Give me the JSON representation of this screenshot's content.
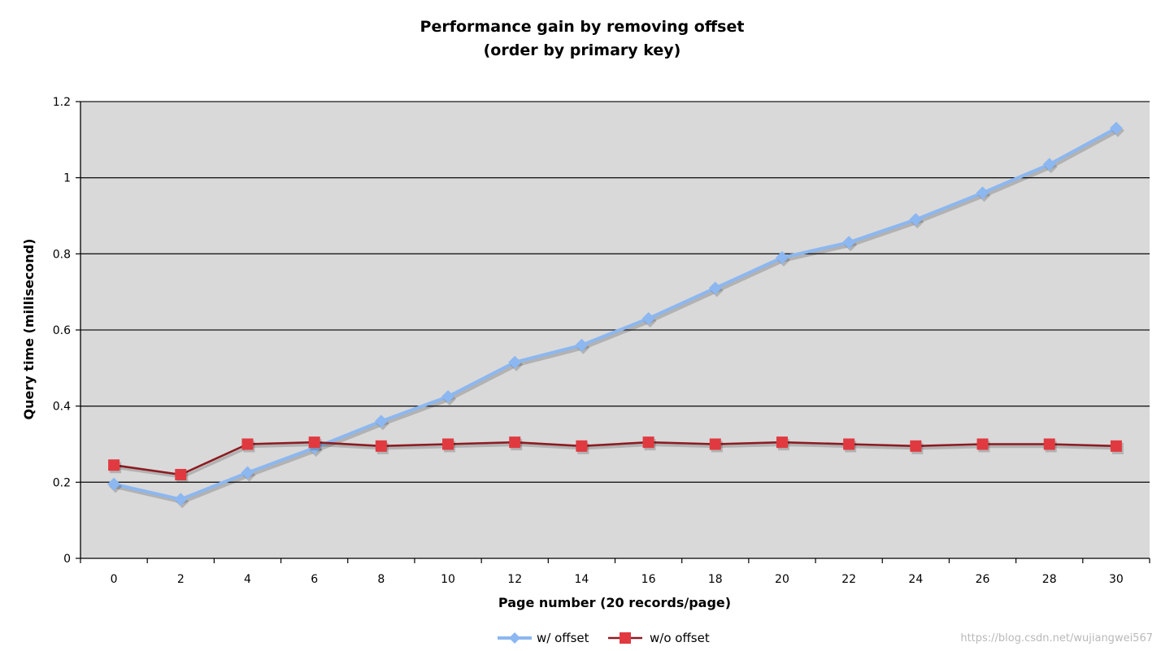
{
  "chart_data": {
    "type": "line",
    "title": "Performance gain by removing offset",
    "subtitle": "(order by primary key)",
    "xlabel": "Page number (20 records/page)",
    "ylabel": "Query time (millisecond)",
    "x": [
      0,
      2,
      4,
      6,
      8,
      10,
      12,
      14,
      16,
      18,
      20,
      22,
      24,
      26,
      28,
      30
    ],
    "x_tick_labels": [
      "0",
      "2",
      "4",
      "6",
      "8",
      "10",
      "12",
      "14",
      "16",
      "18",
      "20",
      "22",
      "24",
      "26",
      "28",
      "30"
    ],
    "y_tick_labels": [
      "0",
      "0.2",
      "0.4",
      "0.6",
      "0.8",
      "1",
      "1.2"
    ],
    "ylim": [
      0,
      1.2
    ],
    "grid": true,
    "legend_position": "bottom",
    "series": [
      {
        "name": "w/ offset",
        "color": "#8cb7f0",
        "marker": "diamond",
        "values": [
          0.195,
          0.155,
          0.225,
          0.29,
          0.36,
          0.425,
          0.515,
          0.56,
          0.63,
          0.71,
          0.79,
          0.83,
          0.89,
          0.96,
          1.035,
          1.13
        ]
      },
      {
        "name": "w/o offset",
        "color": "#e03a40",
        "line_color": "#8b1c22",
        "marker": "square",
        "values": [
          0.245,
          0.22,
          0.3,
          0.305,
          0.295,
          0.3,
          0.305,
          0.295,
          0.305,
          0.3,
          0.305,
          0.3,
          0.295,
          0.3,
          0.3,
          0.295
        ]
      }
    ]
  },
  "watermark": "https://blog.csdn.net/wujiangwei567"
}
